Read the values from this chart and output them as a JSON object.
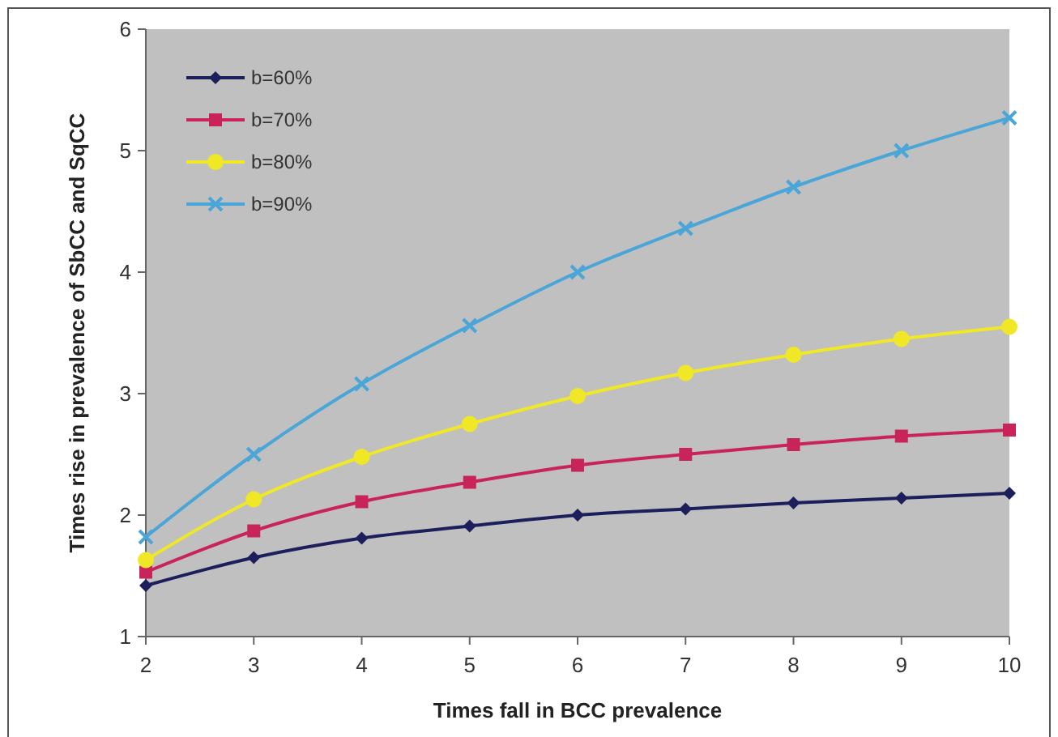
{
  "chart_data": {
    "type": "line",
    "xlabel": "Times fall in BCC prevalence",
    "ylabel": "Times rise in prevalence of SbCC and SqCC",
    "x": [
      2,
      3,
      4,
      5,
      6,
      7,
      8,
      9,
      10
    ],
    "xlim": [
      2,
      10
    ],
    "xticks": [
      2,
      3,
      4,
      5,
      6,
      7,
      8,
      9,
      10
    ],
    "ylim": [
      1,
      6
    ],
    "yticks": [
      1,
      2,
      3,
      4,
      5,
      6
    ],
    "grid": false,
    "legend": "top left",
    "series": [
      {
        "name": "b=60%",
        "color": "#1c1f5c",
        "marker": "diamond",
        "values": [
          1.42,
          1.65,
          1.81,
          1.91,
          2.0,
          2.05,
          2.1,
          2.14,
          2.18
        ]
      },
      {
        "name": "b=70%",
        "color": "#c8245a",
        "marker": "square",
        "values": [
          1.53,
          1.87,
          2.11,
          2.27,
          2.41,
          2.5,
          2.58,
          2.65,
          2.7
        ]
      },
      {
        "name": "b=80%",
        "color": "#f0e826",
        "marker": "circle",
        "values": [
          1.63,
          2.13,
          2.48,
          2.75,
          2.98,
          3.17,
          3.32,
          3.45,
          3.55
        ]
      },
      {
        "name": "b=90%",
        "color": "#4aa6d8",
        "marker": "cross",
        "values": [
          1.82,
          2.5,
          3.08,
          3.56,
          4.0,
          4.36,
          4.7,
          5.0,
          5.27
        ]
      }
    ]
  }
}
